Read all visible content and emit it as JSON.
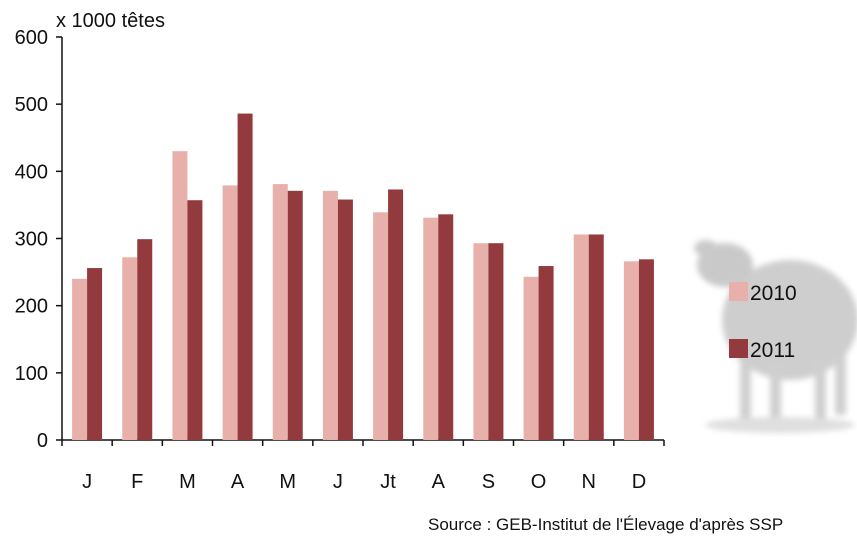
{
  "chart_data": {
    "type": "bar",
    "title": "",
    "unit_label": "x 1000 têtes",
    "categories": [
      "J",
      "F",
      "M",
      "A",
      "M",
      "J",
      "Jt",
      "A",
      "S",
      "O",
      "N",
      "D"
    ],
    "series": [
      {
        "name": "2010",
        "color": "#e8b0aa",
        "values": [
          240,
          272,
          430,
          379,
          381,
          371,
          339,
          331,
          293,
          243,
          306,
          266
        ]
      },
      {
        "name": "2011",
        "color": "#923a3e",
        "values": [
          256,
          299,
          357,
          486,
          371,
          358,
          373,
          336,
          293,
          259,
          306,
          269
        ]
      }
    ],
    "ylim": [
      0,
      600
    ],
    "yticks": [
      0,
      100,
      200,
      300,
      400,
      500,
      600
    ],
    "grid": false,
    "legend_position": "right",
    "source": "Source : GEB-Institut de l'Élevage d'après SSP",
    "decoration": "sheep-silhouette"
  }
}
